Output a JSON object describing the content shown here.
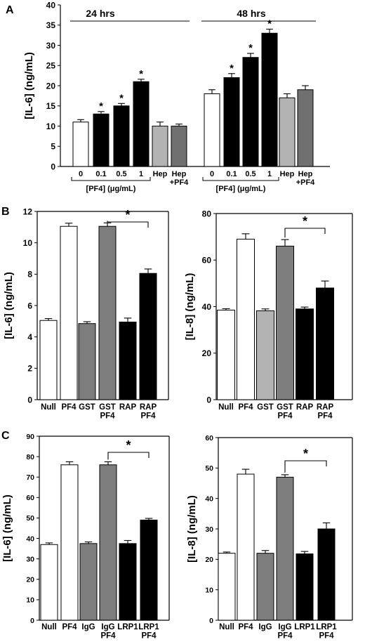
{
  "colors": {
    "white": "#ffffff",
    "black": "#000000",
    "dark_gray": "#707070",
    "mid_gray": "#7d7d7d",
    "light_gray": "#b3b3b3",
    "axis": "#000000"
  },
  "chart_data": [
    {
      "id": "A",
      "panel_label": "A",
      "type": "bar",
      "ylabel": "[IL-6] (ng/mL)",
      "ylim": [
        0,
        40
      ],
      "yticks": [
        0,
        5,
        10,
        15,
        20,
        25,
        30,
        35,
        40
      ],
      "grid": false,
      "groups": [
        {
          "label": "24 hrs",
          "bracket_label": "[PF4] (μg/mL)",
          "categories": [
            "0",
            "0.1",
            "0.5",
            "1",
            "Hep",
            "Hep\n+PF4"
          ],
          "values": [
            11,
            13,
            15,
            21,
            10,
            10
          ],
          "errors": [
            0.6,
            0.6,
            0.6,
            0.6,
            1.0,
            0.5
          ],
          "colors": [
            "white",
            "black",
            "black",
            "black",
            "light_gray",
            "dark_gray"
          ],
          "significant": [
            false,
            true,
            true,
            true,
            false,
            false
          ]
        },
        {
          "label": "48 hrs",
          "bracket_label": "[PF4] (μg/mL)",
          "categories": [
            "0",
            "0.1",
            "0.5",
            "1",
            "Hep",
            "Hep\n+PF4"
          ],
          "values": [
            18,
            22,
            27,
            33,
            17,
            19
          ],
          "errors": [
            1.0,
            1.0,
            1.0,
            1.0,
            1.0,
            1.0
          ],
          "colors": [
            "white",
            "black",
            "black",
            "black",
            "light_gray",
            "dark_gray"
          ],
          "significant": [
            false,
            true,
            true,
            true,
            false,
            false
          ]
        }
      ],
      "significance_mark": "*"
    },
    {
      "id": "B1",
      "panel_label": "B",
      "type": "bar",
      "ylabel": "[IL-6] (ng/mL)",
      "ylim": [
        0,
        12
      ],
      "yticks": [
        0,
        2,
        4,
        6,
        8,
        10,
        12
      ],
      "grid": false,
      "categories": [
        "Null",
        "PF4",
        "GST",
        "GST\nPF4",
        "RAP",
        "RAP\nPF4"
      ],
      "values": [
        5.05,
        11.05,
        4.85,
        11.05,
        4.95,
        8.05
      ],
      "errors": [
        0.12,
        0.2,
        0.12,
        0.22,
        0.25,
        0.28
      ],
      "colors": [
        "white",
        "white",
        "mid_gray",
        "mid_gray",
        "black",
        "black"
      ],
      "comparison": {
        "from": 3,
        "to": 5,
        "mark": "*"
      }
    },
    {
      "id": "B2",
      "panel_label": "",
      "type": "bar",
      "ylabel": "[IL-8] (ng/mL)",
      "ylim": [
        0,
        80
      ],
      "yticks": [
        0,
        20,
        40,
        60,
        80
      ],
      "grid": false,
      "categories": [
        "Null",
        "PF4",
        "GST",
        "GST\nPF4",
        "RAP",
        "RAP\nPF4"
      ],
      "values": [
        38.5,
        69,
        38.2,
        66,
        39,
        48
      ],
      "errors": [
        0.6,
        2.3,
        0.8,
        2.8,
        0.8,
        3.0
      ],
      "colors": [
        "white",
        "white",
        "light_gray",
        "mid_gray",
        "black",
        "black"
      ],
      "comparison": {
        "from": 3,
        "to": 5,
        "mark": "*"
      }
    },
    {
      "id": "C1",
      "panel_label": "C",
      "type": "bar",
      "ylabel": "[IL-6] (ng/mL)",
      "ylim": [
        0,
        90
      ],
      "yticks": [
        0,
        10,
        20,
        30,
        40,
        50,
        60,
        70,
        80,
        90
      ],
      "grid": false,
      "categories": [
        "Null",
        "PF4",
        "IgG",
        "IgG\nPF4",
        "LRP1",
        "LRP1\nPF4"
      ],
      "values": [
        37,
        76,
        37.5,
        76,
        37.5,
        49
      ],
      "errors": [
        0.8,
        1.5,
        0.8,
        1.5,
        1.5,
        0.8
      ],
      "colors": [
        "white",
        "white",
        "mid_gray",
        "mid_gray",
        "black",
        "black"
      ],
      "comparison": {
        "from": 3,
        "to": 5,
        "mark": "*"
      }
    },
    {
      "id": "C2",
      "panel_label": "",
      "type": "bar",
      "ylabel": "[IL-8] (ng/mL)",
      "ylim": [
        0,
        60
      ],
      "yticks": [
        0,
        10,
        20,
        30,
        40,
        50,
        60
      ],
      "grid": false,
      "categories": [
        "Null",
        "PF4",
        "IgG",
        "IgG\nPF4",
        "LRP1",
        "LRP1\nPF4"
      ],
      "values": [
        22,
        48,
        22,
        47,
        21.8,
        30
      ],
      "errors": [
        0.4,
        1.6,
        0.9,
        0.8,
        0.8,
        2.0
      ],
      "colors": [
        "white",
        "white",
        "mid_gray",
        "mid_gray",
        "black",
        "black"
      ],
      "comparison": {
        "from": 3,
        "to": 5,
        "mark": "*"
      }
    }
  ]
}
